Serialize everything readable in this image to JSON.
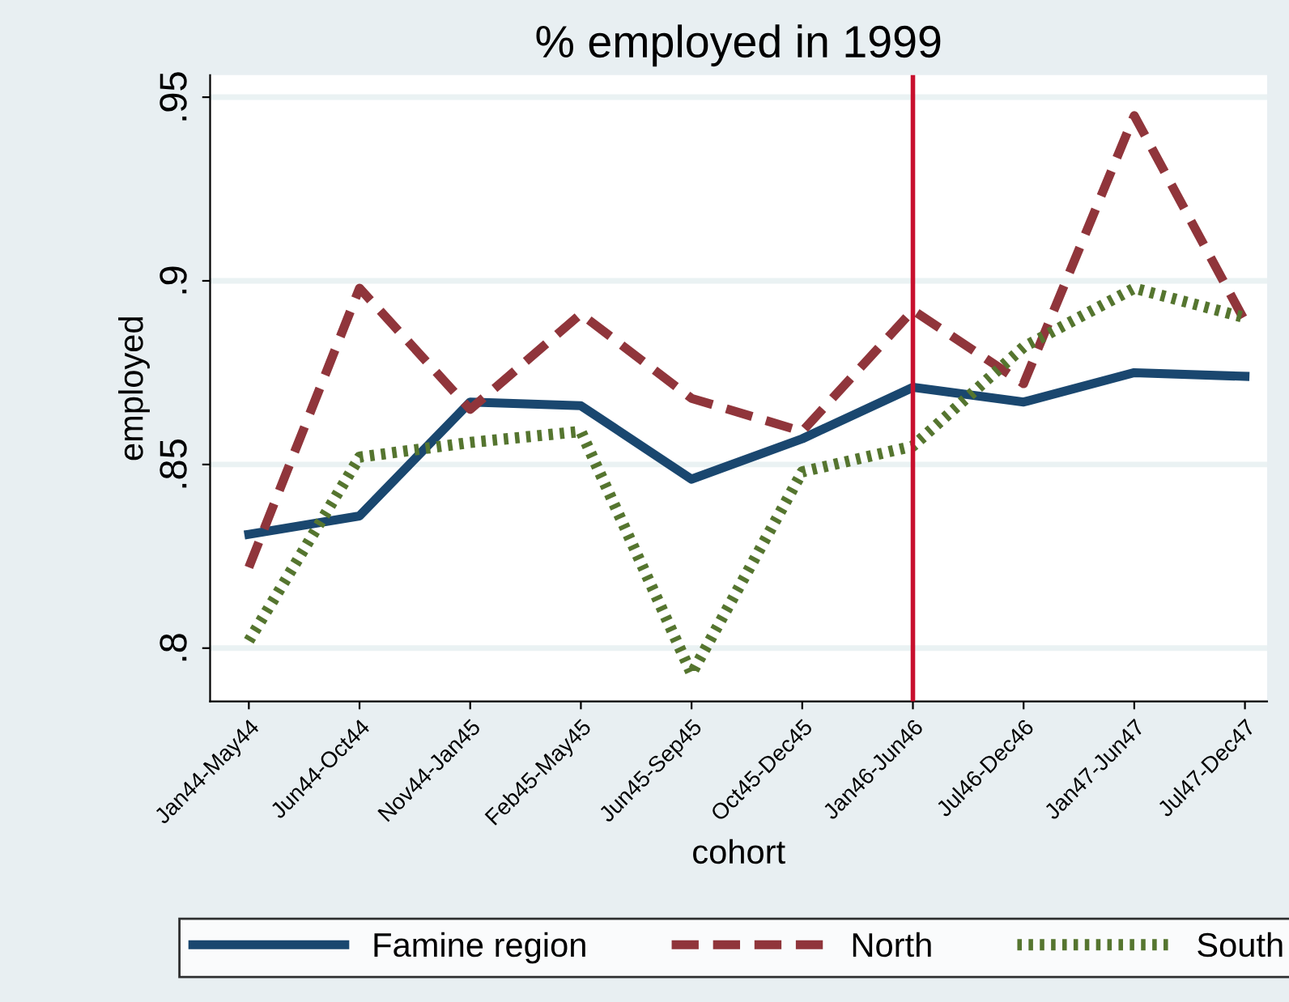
{
  "chart_data": {
    "type": "line",
    "title": "% employed in 1999",
    "xlabel": "cohort",
    "ylabel": "employed",
    "categories": [
      "Jan44-May44",
      "Jun44-Oct44",
      "Nov44-Jan45",
      "Feb45-May45",
      "Jun45-Sep45",
      "Oct45-Dec45",
      "Jan46-Jun46",
      "Jul46-Dec46",
      "Jan47-Jun47",
      "Jul47-Dec47"
    ],
    "series": [
      {
        "name": "Famine region",
        "color": "#1a476f",
        "line_style": "solid",
        "values": [
          0.831,
          0.836,
          0.867,
          0.866,
          0.846,
          0.857,
          0.871,
          0.867,
          0.875,
          0.874
        ]
      },
      {
        "name": "North",
        "color": "#90353b",
        "line_style": "dashed",
        "values": [
          0.822,
          0.898,
          0.865,
          0.891,
          0.868,
          0.859,
          0.892,
          0.872,
          0.945,
          0.889
        ]
      },
      {
        "name": "South",
        "color": "#55752f",
        "line_style": "dotted",
        "values": [
          0.802,
          0.852,
          0.856,
          0.859,
          0.793,
          0.848,
          0.855,
          0.882,
          0.898,
          0.89
        ]
      }
    ],
    "ylim": [
      0.7855,
      0.956
    ],
    "yticks": [
      {
        "value": 0.8,
        "label": ".8"
      },
      {
        "value": 0.85,
        "label": ".85"
      },
      {
        "value": 0.9,
        "label": ".9"
      },
      {
        "value": 0.95,
        "label": ".95"
      }
    ],
    "ref_lines": [
      {
        "axis": "x",
        "value": "Jan46-Jun46",
        "color": "#c8102e"
      }
    ],
    "grid": "y",
    "legend": "bottom",
    "marker": "none"
  }
}
